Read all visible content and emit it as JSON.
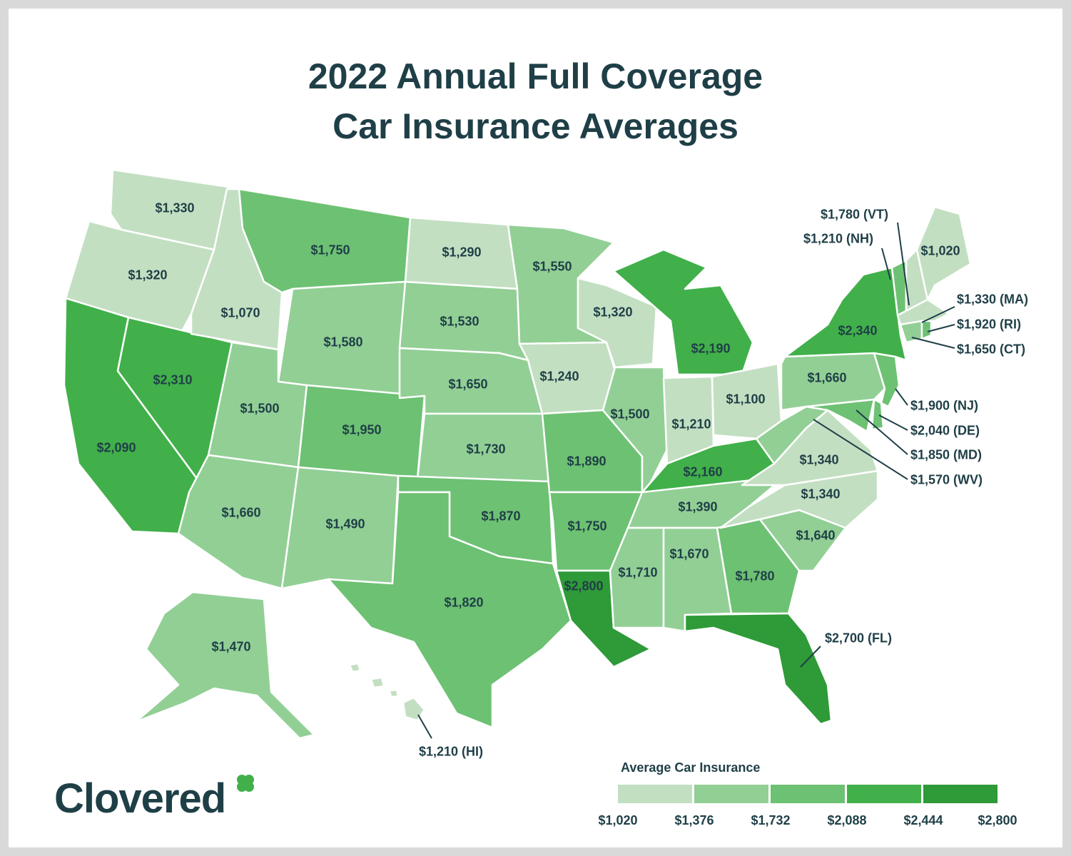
{
  "title_line1": "2022 Annual Full Coverage",
  "title_line2": "Car Insurance Averages",
  "colors": {
    "bin1": "#c3dfc2",
    "bin2": "#92cf95",
    "bin3": "#6dc173",
    "bin4": "#41b04a",
    "bin5": "#2e9a38",
    "text": "#1f3f47",
    "border": "#d9d9d9"
  },
  "states": [
    {
      "id": "WA",
      "value": 1330,
      "label": "$1,330"
    },
    {
      "id": "OR",
      "value": 1320,
      "label": "$1,320"
    },
    {
      "id": "CA",
      "value": 2090,
      "label": "$2,090"
    },
    {
      "id": "NV",
      "value": 2310,
      "label": "$2,310"
    },
    {
      "id": "ID",
      "value": 1070,
      "label": "$1,070"
    },
    {
      "id": "MT",
      "value": 1750,
      "label": "$1,750"
    },
    {
      "id": "WY",
      "value": 1580,
      "label": "$1,580"
    },
    {
      "id": "UT",
      "value": 1500,
      "label": "$1,500"
    },
    {
      "id": "AZ",
      "value": 1660,
      "label": "$1,660"
    },
    {
      "id": "CO",
      "value": 1950,
      "label": "$1,950"
    },
    {
      "id": "NM",
      "value": 1490,
      "label": "$1,490"
    },
    {
      "id": "ND",
      "value": 1290,
      "label": "$1,290"
    },
    {
      "id": "SD",
      "value": 1530,
      "label": "$1,530"
    },
    {
      "id": "NE",
      "value": 1650,
      "label": "$1,650"
    },
    {
      "id": "KS",
      "value": 1730,
      "label": "$1,730"
    },
    {
      "id": "OK",
      "value": 1870,
      "label": "$1,870"
    },
    {
      "id": "TX",
      "value": 1820,
      "label": "$1,820"
    },
    {
      "id": "MN",
      "value": 1550,
      "label": "$1,550"
    },
    {
      "id": "IA",
      "value": 1240,
      "label": "$1,240"
    },
    {
      "id": "MO",
      "value": 1890,
      "label": "$1,890"
    },
    {
      "id": "AR",
      "value": 1750,
      "label": "$1,750"
    },
    {
      "id": "LA",
      "value": 2800,
      "label": "$2,800"
    },
    {
      "id": "WI",
      "value": 1320,
      "label": "$1,320"
    },
    {
      "id": "IL",
      "value": 1500,
      "label": "$1,500"
    },
    {
      "id": "MI",
      "value": 2190,
      "label": "$2,190"
    },
    {
      "id": "IN",
      "value": 1210,
      "label": "$1,210"
    },
    {
      "id": "OH",
      "value": 1100,
      "label": "$1,100"
    },
    {
      "id": "KY",
      "value": 2160,
      "label": "$2,160"
    },
    {
      "id": "TN",
      "value": 1390,
      "label": "$1,390"
    },
    {
      "id": "MS",
      "value": 1710,
      "label": "$1,710"
    },
    {
      "id": "AL",
      "value": 1670,
      "label": "$1,670"
    },
    {
      "id": "GA",
      "value": 1780,
      "label": "$1,780"
    },
    {
      "id": "SC",
      "value": 1640,
      "label": "$1,640"
    },
    {
      "id": "NC",
      "value": 1340,
      "label": "$1,340"
    },
    {
      "id": "VA",
      "value": 1340,
      "label": "$1,340"
    },
    {
      "id": "PA",
      "value": 1660,
      "label": "$1,660"
    },
    {
      "id": "NY",
      "value": 2340,
      "label": "$2,340"
    },
    {
      "id": "ME",
      "value": 1020,
      "label": "$1,020"
    },
    {
      "id": "AK",
      "value": 1470,
      "label": "$1,470"
    },
    {
      "id": "VT",
      "value": 1780,
      "label": "$1,780 (VT)"
    },
    {
      "id": "NH",
      "value": 1210,
      "label": "$1,210 (NH)"
    },
    {
      "id": "MA",
      "value": 1330,
      "label": "$1,330 (MA)"
    },
    {
      "id": "RI",
      "value": 1920,
      "label": "$1,920 (RI)"
    },
    {
      "id": "CT",
      "value": 1650,
      "label": "$1,650 (CT)"
    },
    {
      "id": "NJ",
      "value": 1900,
      "label": "$1,900 (NJ)"
    },
    {
      "id": "DE",
      "value": 2040,
      "label": "$2,040 (DE)"
    },
    {
      "id": "MD",
      "value": 1850,
      "label": "$1,850 (MD)"
    },
    {
      "id": "WV",
      "value": 1570,
      "label": "$1,570 (WV)"
    },
    {
      "id": "FL",
      "value": 2700,
      "label": "$2,700 (FL)"
    },
    {
      "id": "HI",
      "value": 1210,
      "label": "$1,210 (HI)"
    }
  ],
  "legend": {
    "title": "Average Car Insurance",
    "breaks": [
      "$1,020",
      "$1,376",
      "$1,732",
      "$2,088",
      "$2,444",
      "$2,800"
    ]
  },
  "logo": {
    "text": "Clovered",
    "icon": "clover-icon"
  }
}
